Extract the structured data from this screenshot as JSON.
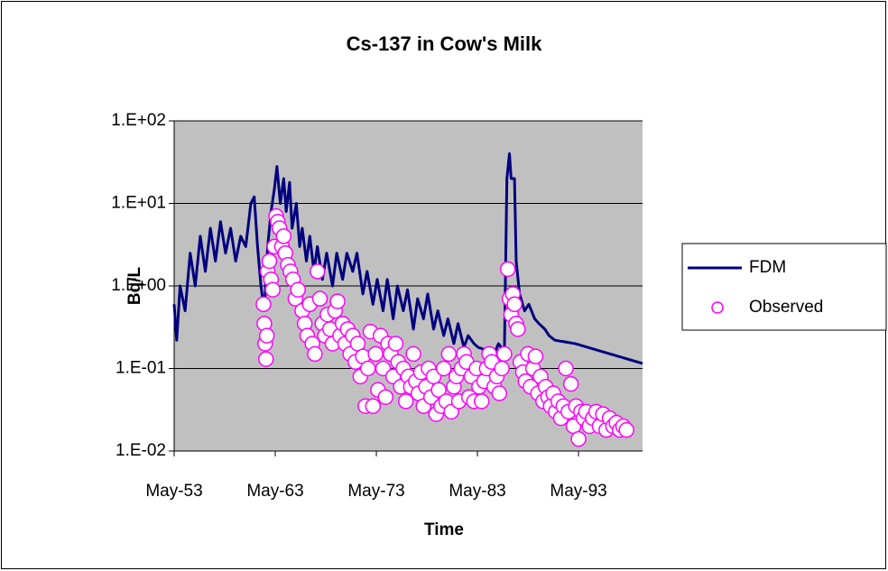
{
  "chart_data": {
    "type": "line",
    "title": "Cs-137 in Cow's Milk",
    "x_label": "Time",
    "y_label": "Bq/L",
    "log_y": true,
    "grid": true,
    "background": "#c0c0c0",
    "legend": "right",
    "xlim": [
      "1953-05",
      "1999-09"
    ],
    "xticks": [
      {
        "value": "1953-05",
        "label": "May-53"
      },
      {
        "value": "1963-05",
        "label": "May-63"
      },
      {
        "value": "1973-05",
        "label": "May-73"
      },
      {
        "value": "1983-05",
        "label": "May-83"
      },
      {
        "value": "1993-05",
        "label": "May-93"
      }
    ],
    "ylim": [
      0.01,
      100
    ],
    "yticks": [
      {
        "value": 0.01,
        "label": "1.E-02"
      },
      {
        "value": 0.1,
        "label": "1.E-01"
      },
      {
        "value": 1,
        "label": "1.E+00"
      },
      {
        "value": 10,
        "label": "1.E+01"
      },
      {
        "value": 100,
        "label": "1.E+02"
      }
    ],
    "series": [
      {
        "name": "FDM",
        "type": "line",
        "color": "#000080",
        "x": [
          "1953-05",
          "1953-08",
          "1953-12",
          "1954-06",
          "1954-12",
          "1955-06",
          "1955-12",
          "1956-06",
          "1956-12",
          "1957-06",
          "1957-12",
          "1958-06",
          "1958-12",
          "1959-06",
          "1959-12",
          "1960-06",
          "1960-12",
          "1961-04",
          "1961-08",
          "1961-12",
          "1962-04",
          "1962-08",
          "1962-12",
          "1963-04",
          "1963-07",
          "1963-11",
          "1964-03",
          "1964-06",
          "1964-10",
          "1965-01",
          "1965-06",
          "1965-10",
          "1966-01",
          "1966-06",
          "1966-10",
          "1967-03",
          "1967-07",
          "1968-01",
          "1968-06",
          "1969-01",
          "1969-06",
          "1970-01",
          "1970-06",
          "1971-01",
          "1971-06",
          "1972-01",
          "1972-06",
          "1973-01",
          "1973-06",
          "1974-01",
          "1974-06",
          "1975-01",
          "1975-06",
          "1976-01",
          "1976-06",
          "1977-01",
          "1977-06",
          "1978-01",
          "1978-06",
          "1979-01",
          "1979-06",
          "1980-01",
          "1980-06",
          "1981-01",
          "1981-06",
          "1982-01",
          "1982-06",
          "1983-01",
          "1983-06",
          "1984-01",
          "1984-06",
          "1985-01",
          "1985-06",
          "1986-01",
          "1986-04",
          "1986-07",
          "1986-09",
          "1987-01",
          "1987-03",
          "1987-07",
          "1988-01",
          "1988-06",
          "1989-01",
          "1989-06",
          "1990-01",
          "1990-06",
          "1991-01",
          "1992-01",
          "1993-01",
          "1999-09"
        ],
        "values": [
          0.6,
          0.22,
          1.0,
          0.5,
          2.5,
          1.0,
          4,
          1.5,
          5,
          2,
          6,
          2.5,
          5,
          2,
          4,
          3,
          10,
          12,
          3,
          1.0,
          0.5,
          3,
          8,
          15,
          28,
          10,
          20,
          8,
          18,
          5,
          10,
          3,
          5,
          2,
          4,
          1.5,
          3,
          1.2,
          2.5,
          1.0,
          2.5,
          1.2,
          2.5,
          1.5,
          2.5,
          0.8,
          1.5,
          0.6,
          1.2,
          0.5,
          1.2,
          0.4,
          1.0,
          0.5,
          0.9,
          0.3,
          0.7,
          0.4,
          0.8,
          0.3,
          0.5,
          0.25,
          0.4,
          0.2,
          0.35,
          0.18,
          0.25,
          0.2,
          0.18,
          0.17,
          0.16,
          0.15,
          0.2,
          0.16,
          20,
          40,
          20,
          20,
          2,
          0.8,
          0.5,
          0.6,
          0.4,
          0.35,
          0.3,
          0.25,
          0.22,
          0.21,
          0.2,
          0.115
        ]
      },
      {
        "name": "Observed",
        "type": "scatter",
        "color": "#ff00ff",
        "x": [
          "1962-03",
          "1962-04",
          "1962-05",
          "1962-06",
          "1962-07",
          "1962-08",
          "1962-10",
          "1962-12",
          "1963-02",
          "1963-04",
          "1963-06",
          "1963-08",
          "1963-10",
          "1964-01",
          "1964-03",
          "1964-05",
          "1964-08",
          "1964-11",
          "1965-02",
          "1965-05",
          "1965-08",
          "1966-01",
          "1966-04",
          "1966-07",
          "1966-10",
          "1967-01",
          "1967-04",
          "1967-07",
          "1967-10",
          "1968-01",
          "1968-04",
          "1968-07",
          "1968-10",
          "1969-01",
          "1969-04",
          "1969-07",
          "1969-10",
          "1970-01",
          "1970-04",
          "1970-07",
          "1970-10",
          "1971-01",
          "1971-04",
          "1971-07",
          "1971-10",
          "1972-01",
          "1972-04",
          "1972-07",
          "1972-10",
          "1973-01",
          "1973-04",
          "1973-07",
          "1973-10",
          "1974-01",
          "1974-04",
          "1974-07",
          "1974-10",
          "1975-01",
          "1975-04",
          "1975-07",
          "1975-10",
          "1976-01",
          "1976-04",
          "1976-07",
          "1976-10",
          "1977-01",
          "1977-04",
          "1977-07",
          "1977-10",
          "1978-01",
          "1978-04",
          "1978-07",
          "1978-10",
          "1979-01",
          "1979-04",
          "1979-07",
          "1979-10",
          "1980-01",
          "1980-04",
          "1980-07",
          "1980-10",
          "1981-01",
          "1981-04",
          "1981-07",
          "1981-10",
          "1982-01",
          "1982-04",
          "1982-07",
          "1982-10",
          "1983-01",
          "1983-04",
          "1983-07",
          "1983-10",
          "1984-01",
          "1984-04",
          "1984-07",
          "1984-10",
          "1985-01",
          "1985-04",
          "1985-07",
          "1985-10",
          "1986-01",
          "1986-05",
          "1986-07",
          "1986-09",
          "1986-11",
          "1987-01",
          "1987-03",
          "1987-05",
          "1987-08",
          "1987-11",
          "1988-02",
          "1988-05",
          "1988-08",
          "1988-11",
          "1989-02",
          "1989-05",
          "1989-08",
          "1989-11",
          "1990-02",
          "1990-05",
          "1990-08",
          "1990-11",
          "1991-02",
          "1991-05",
          "1991-08",
          "1991-11",
          "1992-02",
          "1992-05",
          "1992-08",
          "1992-11",
          "1993-02",
          "1993-05",
          "1993-08",
          "1993-11",
          "1994-02",
          "1994-06",
          "1994-10",
          "1995-02",
          "1995-06",
          "1995-10",
          "1996-02",
          "1996-06",
          "1996-10",
          "1997-02",
          "1997-06",
          "1997-10",
          "1998-02"
        ],
        "values": [
          0.6,
          0.35,
          0.2,
          0.13,
          0.25,
          1.5,
          2.0,
          1.2,
          0.9,
          3,
          7,
          6,
          5,
          3,
          4,
          2.5,
          1.8,
          1.5,
          1.2,
          0.7,
          0.9,
          0.5,
          0.35,
          0.25,
          0.6,
          0.2,
          0.15,
          1.5,
          0.7,
          0.35,
          0.25,
          0.45,
          0.3,
          0.2,
          0.5,
          0.65,
          0.25,
          0.35,
          0.2,
          0.3,
          0.15,
          0.25,
          0.12,
          0.2,
          0.08,
          0.14,
          0.035,
          0.1,
          0.28,
          0.035,
          0.15,
          0.055,
          0.25,
          0.1,
          0.045,
          0.2,
          0.15,
          0.08,
          0.2,
          0.12,
          0.06,
          0.1,
          0.04,
          0.08,
          0.06,
          0.15,
          0.07,
          0.05,
          0.09,
          0.035,
          0.06,
          0.1,
          0.045,
          0.08,
          0.028,
          0.055,
          0.035,
          0.1,
          0.04,
          0.15,
          0.03,
          0.06,
          0.08,
          0.04,
          0.1,
          0.15,
          0.12,
          0.045,
          0.08,
          0.04,
          0.1,
          0.06,
          0.04,
          0.07,
          0.1,
          0.15,
          0.12,
          0.06,
          0.08,
          0.05,
          0.1,
          0.15,
          1.6,
          0.7,
          0.45,
          0.8,
          0.6,
          0.35,
          0.3,
          0.12,
          0.09,
          0.07,
          0.15,
          0.06,
          0.1,
          0.14,
          0.05,
          0.08,
          0.04,
          0.06,
          0.045,
          0.035,
          0.05,
          0.03,
          0.04,
          0.025,
          0.035,
          0.1,
          0.03,
          0.065,
          0.02,
          0.035,
          0.014,
          0.03,
          0.025,
          0.03,
          0.02,
          0.025,
          0.03,
          0.02,
          0.028,
          0.018,
          0.025,
          0.02,
          0.022,
          0.018,
          0.02,
          0.018
        ]
      }
    ]
  }
}
